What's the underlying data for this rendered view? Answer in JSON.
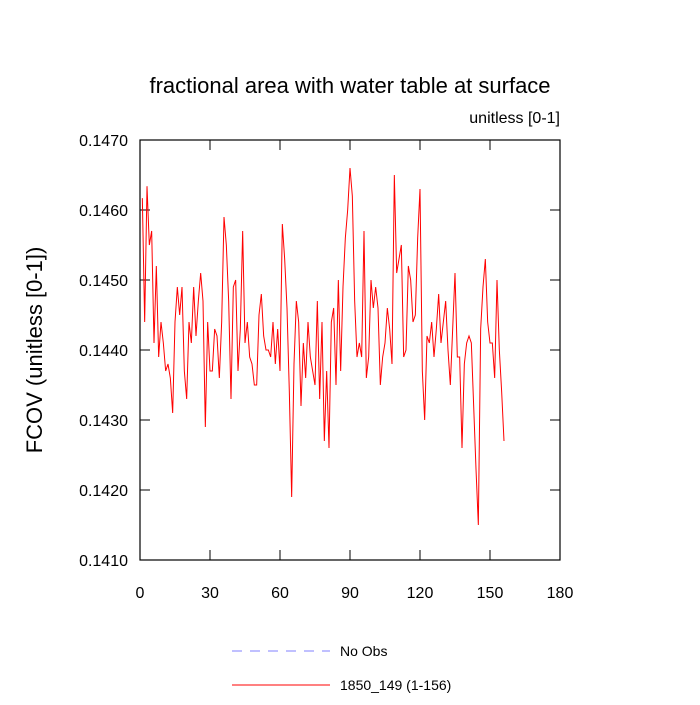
{
  "chart_data": {
    "type": "line",
    "title": "fractional area with water table at surface",
    "subtitle": "unitless [0-1]",
    "y_label": "FCOV  (unitless [0-1])",
    "xlim": [
      0,
      180
    ],
    "xticks": [
      0,
      30,
      60,
      90,
      120,
      150,
      180
    ],
    "ylim": [
      0.141,
      0.147
    ],
    "yticks": [
      {
        "value": 0.141,
        "label": "0.1410"
      },
      {
        "value": 0.142,
        "label": "0.1420"
      },
      {
        "value": 0.143,
        "label": "0.1430"
      },
      {
        "value": 0.144,
        "label": "0.1440"
      },
      {
        "value": 0.145,
        "label": "0.1450"
      },
      {
        "value": 0.146,
        "label": "0.1460"
      },
      {
        "value": 0.147,
        "label": "0.1470"
      }
    ],
    "x": [
      1,
      2,
      3,
      4,
      5,
      6,
      7,
      8,
      9,
      10,
      11,
      12,
      13,
      14,
      15,
      16,
      17,
      18,
      19,
      20,
      21,
      22,
      23,
      24,
      25,
      26,
      27,
      28,
      29,
      30,
      31,
      32,
      33,
      34,
      35,
      36,
      37,
      38,
      39,
      40,
      41,
      42,
      43,
      44,
      45,
      46,
      47,
      48,
      49,
      50,
      51,
      52,
      53,
      54,
      55,
      56,
      57,
      58,
      59,
      60,
      61,
      62,
      63,
      64,
      65,
      66,
      67,
      68,
      69,
      70,
      71,
      72,
      73,
      74,
      75,
      76,
      77,
      78,
      79,
      80,
      81,
      82,
      83,
      84,
      85,
      86,
      87,
      88,
      89,
      90,
      91,
      92,
      93,
      94,
      95,
      96,
      97,
      98,
      99,
      100,
      101,
      102,
      103,
      104,
      105,
      106,
      107,
      108,
      109,
      110,
      111,
      112,
      113,
      114,
      115,
      116,
      117,
      118,
      119,
      120,
      121,
      122,
      123,
      124,
      125,
      126,
      127,
      128,
      129,
      130,
      131,
      132,
      133,
      134,
      135,
      136,
      137,
      138,
      139,
      140,
      141,
      142,
      143,
      144,
      145,
      146,
      147,
      148,
      149,
      150,
      151,
      152,
      153,
      154,
      155,
      156
    ],
    "series": [
      {
        "name": "No Obs",
        "color": "#8080ff",
        "dash": true
      },
      {
        "name": "1850_149 (1-156)",
        "color": "#ff0000",
        "dash": false,
        "values": [
          0.14617,
          0.1444,
          0.14634,
          0.1455,
          0.1457,
          0.1441,
          0.1452,
          0.1439,
          0.1444,
          0.1441,
          0.1437,
          0.1438,
          0.1436,
          0.1431,
          0.1444,
          0.1449,
          0.1445,
          0.1449,
          0.1437,
          0.1433,
          0.1444,
          0.1441,
          0.1449,
          0.1442,
          0.1447,
          0.1451,
          0.1447,
          0.1429,
          0.1444,
          0.1437,
          0.1437,
          0.1443,
          0.1442,
          0.1436,
          0.1444,
          0.1459,
          0.1455,
          0.1447,
          0.1433,
          0.1449,
          0.145,
          0.1437,
          0.1443,
          0.1457,
          0.1441,
          0.1444,
          0.1439,
          0.1438,
          0.1435,
          0.1435,
          0.1445,
          0.1448,
          0.1442,
          0.144,
          0.144,
          0.1439,
          0.1444,
          0.1438,
          0.1443,
          0.1437,
          0.1458,
          0.1453,
          0.1446,
          0.1434,
          0.1419,
          0.1438,
          0.1447,
          0.1444,
          0.1432,
          0.1441,
          0.1436,
          0.1444,
          0.1439,
          0.1437,
          0.1435,
          0.1447,
          0.1433,
          0.1444,
          0.1427,
          0.1437,
          0.1426,
          0.1444,
          0.1446,
          0.1435,
          0.145,
          0.1437,
          0.1449,
          0.1456,
          0.146,
          0.1466,
          0.1462,
          0.1447,
          0.1439,
          0.1441,
          0.1439,
          0.1457,
          0.1436,
          0.1439,
          0.145,
          0.1446,
          0.1449,
          0.1446,
          0.1435,
          0.1439,
          0.1441,
          0.1446,
          0.1443,
          0.1438,
          0.1465,
          0.1451,
          0.1453,
          0.1455,
          0.1439,
          0.144,
          0.1452,
          0.145,
          0.1444,
          0.1445,
          0.1456,
          0.1463,
          0.1437,
          0.143,
          0.1442,
          0.1441,
          0.1444,
          0.1439,
          0.1443,
          0.1448,
          0.1441,
          0.1444,
          0.1447,
          0.144,
          0.1435,
          0.1443,
          0.1451,
          0.1439,
          0.1439,
          0.1426,
          0.1438,
          0.1441,
          0.1442,
          0.1441,
          0.1432,
          0.1423,
          0.1415,
          0.1443,
          0.1449,
          0.1453,
          0.1444,
          0.1441,
          0.1441,
          0.1436,
          0.145,
          0.144,
          0.1434,
          0.1427
        ]
      }
    ]
  }
}
